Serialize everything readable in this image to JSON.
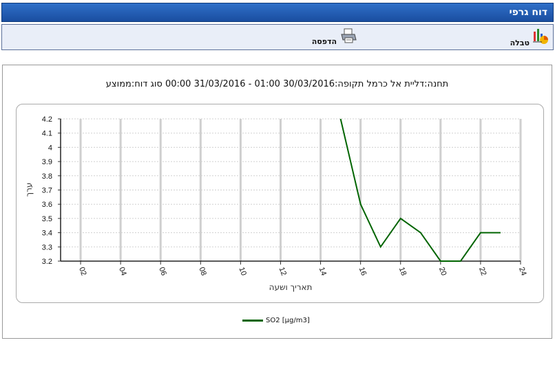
{
  "window": {
    "title": "דוח גרפי"
  },
  "toolbar": {
    "table_label": "טבלה",
    "print_label": "הדפסה",
    "table_icon": "chart-icon",
    "print_icon": "printer-icon"
  },
  "chart_data": {
    "type": "line",
    "title": "תחנה:דליית אל כרמל תקופה:30/03/2016 01:00 - 31/03/2016 00:00 סוג  דוח:ממוצע",
    "xlabel": "תאריך ושעה",
    "ylabel": "ערך",
    "xlim": [
      1,
      24
    ],
    "ylim": [
      3.2,
      4.2
    ],
    "x_ticks": [
      "02",
      "04",
      "06",
      "08",
      "10",
      "12",
      "14",
      "16",
      "18",
      "20",
      "22",
      "24"
    ],
    "y_ticks": [
      "3.2",
      "3.3",
      "3.4",
      "3.5",
      "3.6",
      "3.7",
      "3.8",
      "3.9",
      "4",
      "4.1",
      "4.2"
    ],
    "grid": true,
    "legend_position": "bottom",
    "series": [
      {
        "name": "SO2 [µg/m3]",
        "color": "#006400",
        "x": [
          15,
          16,
          17,
          18,
          19,
          20,
          21,
          22,
          23
        ],
        "y": [
          4.2,
          3.6,
          3.3,
          3.5,
          3.4,
          3.2,
          3.2,
          3.4,
          3.4
        ]
      }
    ]
  }
}
